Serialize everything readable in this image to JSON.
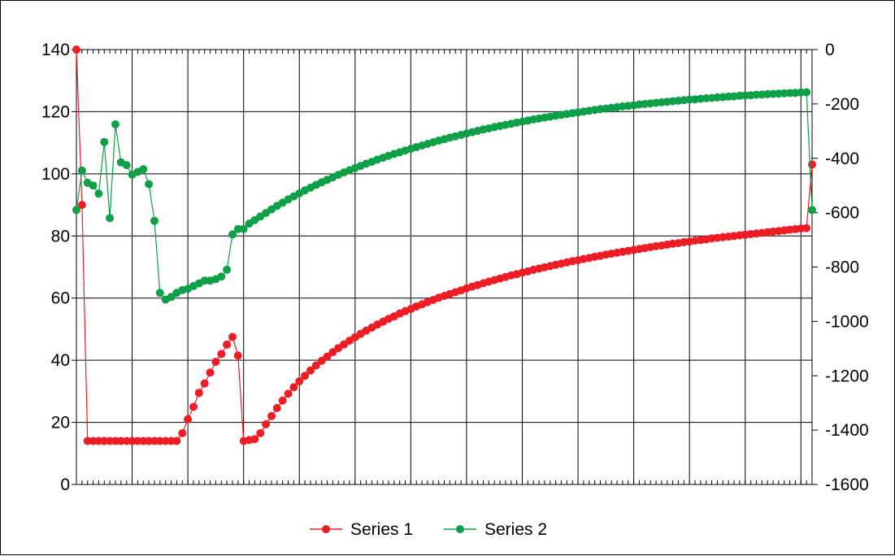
{
  "chart_data": {
    "type": "line",
    "title": "",
    "xlabel": "",
    "ylabel": "",
    "y_left": {
      "range": [
        0,
        140
      ],
      "ticks": [
        "0",
        "20",
        "40",
        "60",
        "80",
        "100",
        "120",
        "140"
      ]
    },
    "y_right": {
      "range": [
        -1600,
        0
      ],
      "ticks": [
        "0",
        "-200",
        "-400",
        "-600",
        "-800",
        "-1000",
        "-1200",
        "-1400",
        "-1600"
      ]
    },
    "x_range": [
      1,
      133
    ],
    "grid": true,
    "legend": {
      "placement": "bottom"
    },
    "series": [
      {
        "name": "Series 1",
        "axis": "left",
        "color": "#ee1c25",
        "marker": "circle",
        "values": [
          140,
          90,
          14,
          14,
          14,
          14,
          14,
          14,
          14,
          14,
          14,
          14,
          14,
          14,
          14,
          14,
          14,
          14,
          14,
          16.5,
          21,
          25,
          29.5,
          32.5,
          36,
          39.5,
          42,
          45,
          47.5,
          41.5,
          14,
          14.3,
          14.6,
          16.5,
          19.4,
          22,
          24.6,
          27,
          29.2,
          31.3,
          33.2,
          35,
          36.7,
          38.3,
          39.8,
          41.2,
          42.6,
          43.9,
          45.1,
          46.3,
          47.4,
          48.5,
          49.5,
          50.5,
          51.5,
          52.4,
          53.3,
          54.1,
          55,
          55.8,
          56.5,
          57.3,
          58,
          58.7,
          59.4,
          60.1,
          60.7,
          61.3,
          61.9,
          62.5,
          63.1,
          63.7,
          64.2,
          64.8,
          65.3,
          65.8,
          66.3,
          66.8,
          67.3,
          67.7,
          68.2,
          68.6,
          69.1,
          69.5,
          69.9,
          70.3,
          70.7,
          71.1,
          71.5,
          71.9,
          72.2,
          72.6,
          72.9,
          73.3,
          73.6,
          74,
          74.3,
          74.6,
          74.9,
          75.2,
          75.5,
          75.8,
          76.1,
          76.4,
          76.7,
          76.9,
          77.2,
          77.5,
          77.7,
          78,
          78.2,
          78.5,
          78.7,
          78.9,
          79.2,
          79.4,
          79.6,
          79.8,
          80,
          80.2,
          80.4,
          80.6,
          80.8,
          81,
          81.2,
          81.4,
          81.6,
          81.8,
          82,
          82.2,
          82.4,
          82.5,
          103
        ]
      },
      {
        "name": "Series 2",
        "axis": "right",
        "color": "#0e9f49",
        "marker": "circle",
        "values": [
          -590,
          -445,
          -490,
          -500,
          -530,
          -340,
          -620,
          -275,
          -415,
          -425,
          -460,
          -450,
          -440,
          -495,
          -630,
          -895,
          -920,
          -910,
          -895,
          -885,
          -880,
          -870,
          -860,
          -850,
          -850,
          -845,
          -835,
          -810,
          -680,
          -660,
          -660,
          -640,
          -627,
          -614,
          -601,
          -588,
          -575,
          -563,
          -551,
          -540,
          -529,
          -518,
          -508,
          -498,
          -488,
          -479,
          -470,
          -461,
          -452,
          -444,
          -436,
          -428,
          -420,
          -413,
          -405,
          -398,
          -391,
          -384,
          -378,
          -371,
          -365,
          -359,
          -353,
          -347,
          -341,
          -335,
          -330,
          -324,
          -319,
          -314,
          -309,
          -304,
          -299,
          -294,
          -290,
          -285,
          -281,
          -277,
          -273,
          -269,
          -265,
          -261,
          -257,
          -254,
          -250,
          -247,
          -243,
          -240,
          -237,
          -234,
          -231,
          -228,
          -225,
          -222,
          -219,
          -217,
          -214,
          -212,
          -209,
          -207,
          -205,
          -202,
          -200,
          -198,
          -196,
          -194,
          -192,
          -190,
          -188,
          -186,
          -184,
          -183,
          -181,
          -179,
          -178,
          -176,
          -175,
          -173,
          -172,
          -170,
          -169,
          -168,
          -166,
          -165,
          -164,
          -163,
          -162,
          -161,
          -160,
          -159,
          -158,
          -157,
          -590
        ]
      }
    ]
  }
}
